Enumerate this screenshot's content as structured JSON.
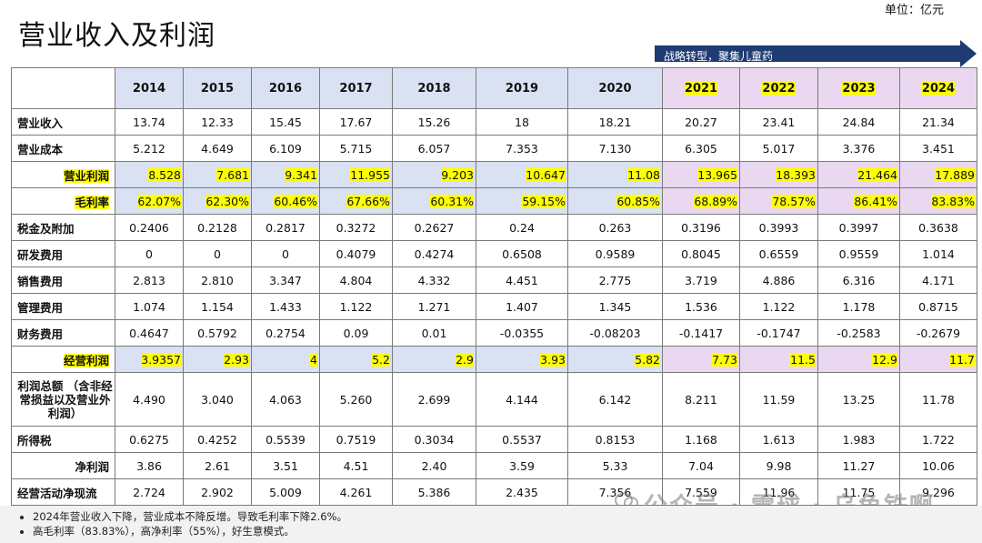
{
  "title": "营业收入及利润",
  "unit": "单位：亿元",
  "strategy_label": "战略转型，聚集儿童药",
  "years": [
    "2014",
    "2015",
    "2016",
    "2017",
    "2018",
    "2019",
    "2020",
    "2021",
    "2022",
    "2023",
    "2024"
  ],
  "rows": [
    {
      "label": "营业收入",
      "values": [
        "13.74",
        "12.33",
        "15.45",
        "17.67",
        "15.26",
        "18",
        "18.21",
        "20.27",
        "23.41",
        "24.84",
        "21.34"
      ]
    },
    {
      "label": "营业成本",
      "values": [
        "5.212",
        "4.649",
        "6.109",
        "5.715",
        "6.057",
        "7.353",
        "7.130",
        "6.305",
        "5.017",
        "3.376",
        "3.451"
      ]
    },
    {
      "label": "营业利润",
      "values": [
        "8.528",
        "7.681",
        "9.341",
        "11.955",
        "9.203",
        "10.647",
        "11.08",
        "13.965",
        "18.393",
        "21.464",
        "17.889"
      ]
    },
    {
      "label": "毛利率",
      "values": [
        "62.07%",
        "62.30%",
        "60.46%",
        "67.66%",
        "60.31%",
        "59.15%",
        "60.85%",
        "68.89%",
        "78.57%",
        "86.41%",
        "83.83%"
      ]
    },
    {
      "label": "税金及附加",
      "values": [
        "0.2406",
        "0.2128",
        "0.2817",
        "0.3272",
        "0.2627",
        "0.24",
        "0.263",
        "0.3196",
        "0.3993",
        "0.3997",
        "0.3638"
      ]
    },
    {
      "label": "研发费用",
      "values": [
        "0",
        "0",
        "0",
        "0.4079",
        "0.4274",
        "0.6508",
        "0.9589",
        "0.8045",
        "0.6559",
        "0.9559",
        "1.014"
      ]
    },
    {
      "label": "销售费用",
      "values": [
        "2.813",
        "2.810",
        "3.347",
        "4.804",
        "4.332",
        "4.451",
        "2.775",
        "3.719",
        "4.886",
        "6.316",
        "4.171"
      ]
    },
    {
      "label": "管理费用",
      "values": [
        "1.074",
        "1.154",
        "1.433",
        "1.122",
        "1.271",
        "1.407",
        "1.345",
        "1.536",
        "1.122",
        "1.178",
        "0.8715"
      ]
    },
    {
      "label": "财务费用",
      "values": [
        "0.4647",
        "0.5792",
        "0.2754",
        "0.09",
        "0.01",
        "-0.0355",
        "-0.08203",
        "-0.1417",
        "-0.1747",
        "-0.2583",
        "-0.2679"
      ]
    },
    {
      "label": "经营利润",
      "values": [
        "3.9357",
        "2.93",
        "4",
        "5.2",
        "2.9",
        "3.93",
        "5.82",
        "7.73",
        "11.5",
        "12.9",
        "11.7"
      ]
    },
    {
      "label": "利润总额\n（含非经常损益以及营业外利润）",
      "values": [
        "4.490",
        "3.040",
        "4.063",
        "5.260",
        "2.699",
        "4.144",
        "6.142",
        "8.211",
        "11.59",
        "13.25",
        "11.78"
      ]
    },
    {
      "label": "所得税",
      "values": [
        "0.6275",
        "0.4252",
        "0.5539",
        "0.7519",
        "0.3034",
        "0.5537",
        "0.8153",
        "1.168",
        "1.613",
        "1.983",
        "1.722"
      ]
    },
    {
      "label": "净利润",
      "values": [
        "3.86",
        "2.61",
        "3.51",
        "4.51",
        "2.40",
        "3.59",
        "5.33",
        "7.04",
        "9.98",
        "11.27",
        "10.06"
      ]
    },
    {
      "label": "经营活动净现流",
      "values": [
        "2.724",
        "2.902",
        "5.009",
        "4.261",
        "5.386",
        "2.435",
        "7.356",
        "7.559",
        "11.96",
        "11.75",
        "9.296"
      ]
    }
  ],
  "notes": [
    "2024年营业收入下降，营业成本不降反增。导致毛利率下降2.6%。",
    "高毛利率（83.83%），高净利率（55%），好生意模式。"
  ],
  "watermark": "公众号 · 雪球 · 乌龟铁啊",
  "colors": {
    "old_years": "#d9e1f2",
    "new_years": "#ead8f0",
    "highlight": "#ffff00",
    "arrow": "#1f3b73"
  }
}
